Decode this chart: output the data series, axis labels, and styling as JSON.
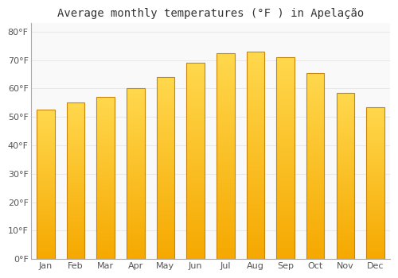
{
  "months": [
    "Jan",
    "Feb",
    "Mar",
    "Apr",
    "May",
    "Jun",
    "Jul",
    "Aug",
    "Sep",
    "Oct",
    "Nov",
    "Dec"
  ],
  "values": [
    52.5,
    55.0,
    57.0,
    60.0,
    64.0,
    69.0,
    72.5,
    73.0,
    71.0,
    65.5,
    58.5,
    53.5
  ],
  "title": "Average monthly temperatures (°F ) in Apelação",
  "ylabel_ticks": [
    "0°F",
    "10°F",
    "20°F",
    "30°F",
    "40°F",
    "50°F",
    "60°F",
    "70°F",
    "80°F"
  ],
  "ytick_vals": [
    0,
    10,
    20,
    30,
    40,
    50,
    60,
    70,
    80
  ],
  "ylim": [
    0,
    83
  ],
  "background_color": "#ffffff",
  "plot_bg_color": "#f9f9f9",
  "grid_color": "#e8e8e8",
  "bar_bottom_color": "#F5A800",
  "bar_top_color": "#FFD84D",
  "bar_edge_color": "#C8860A",
  "title_fontsize": 10,
  "tick_fontsize": 8,
  "bar_width": 0.6
}
